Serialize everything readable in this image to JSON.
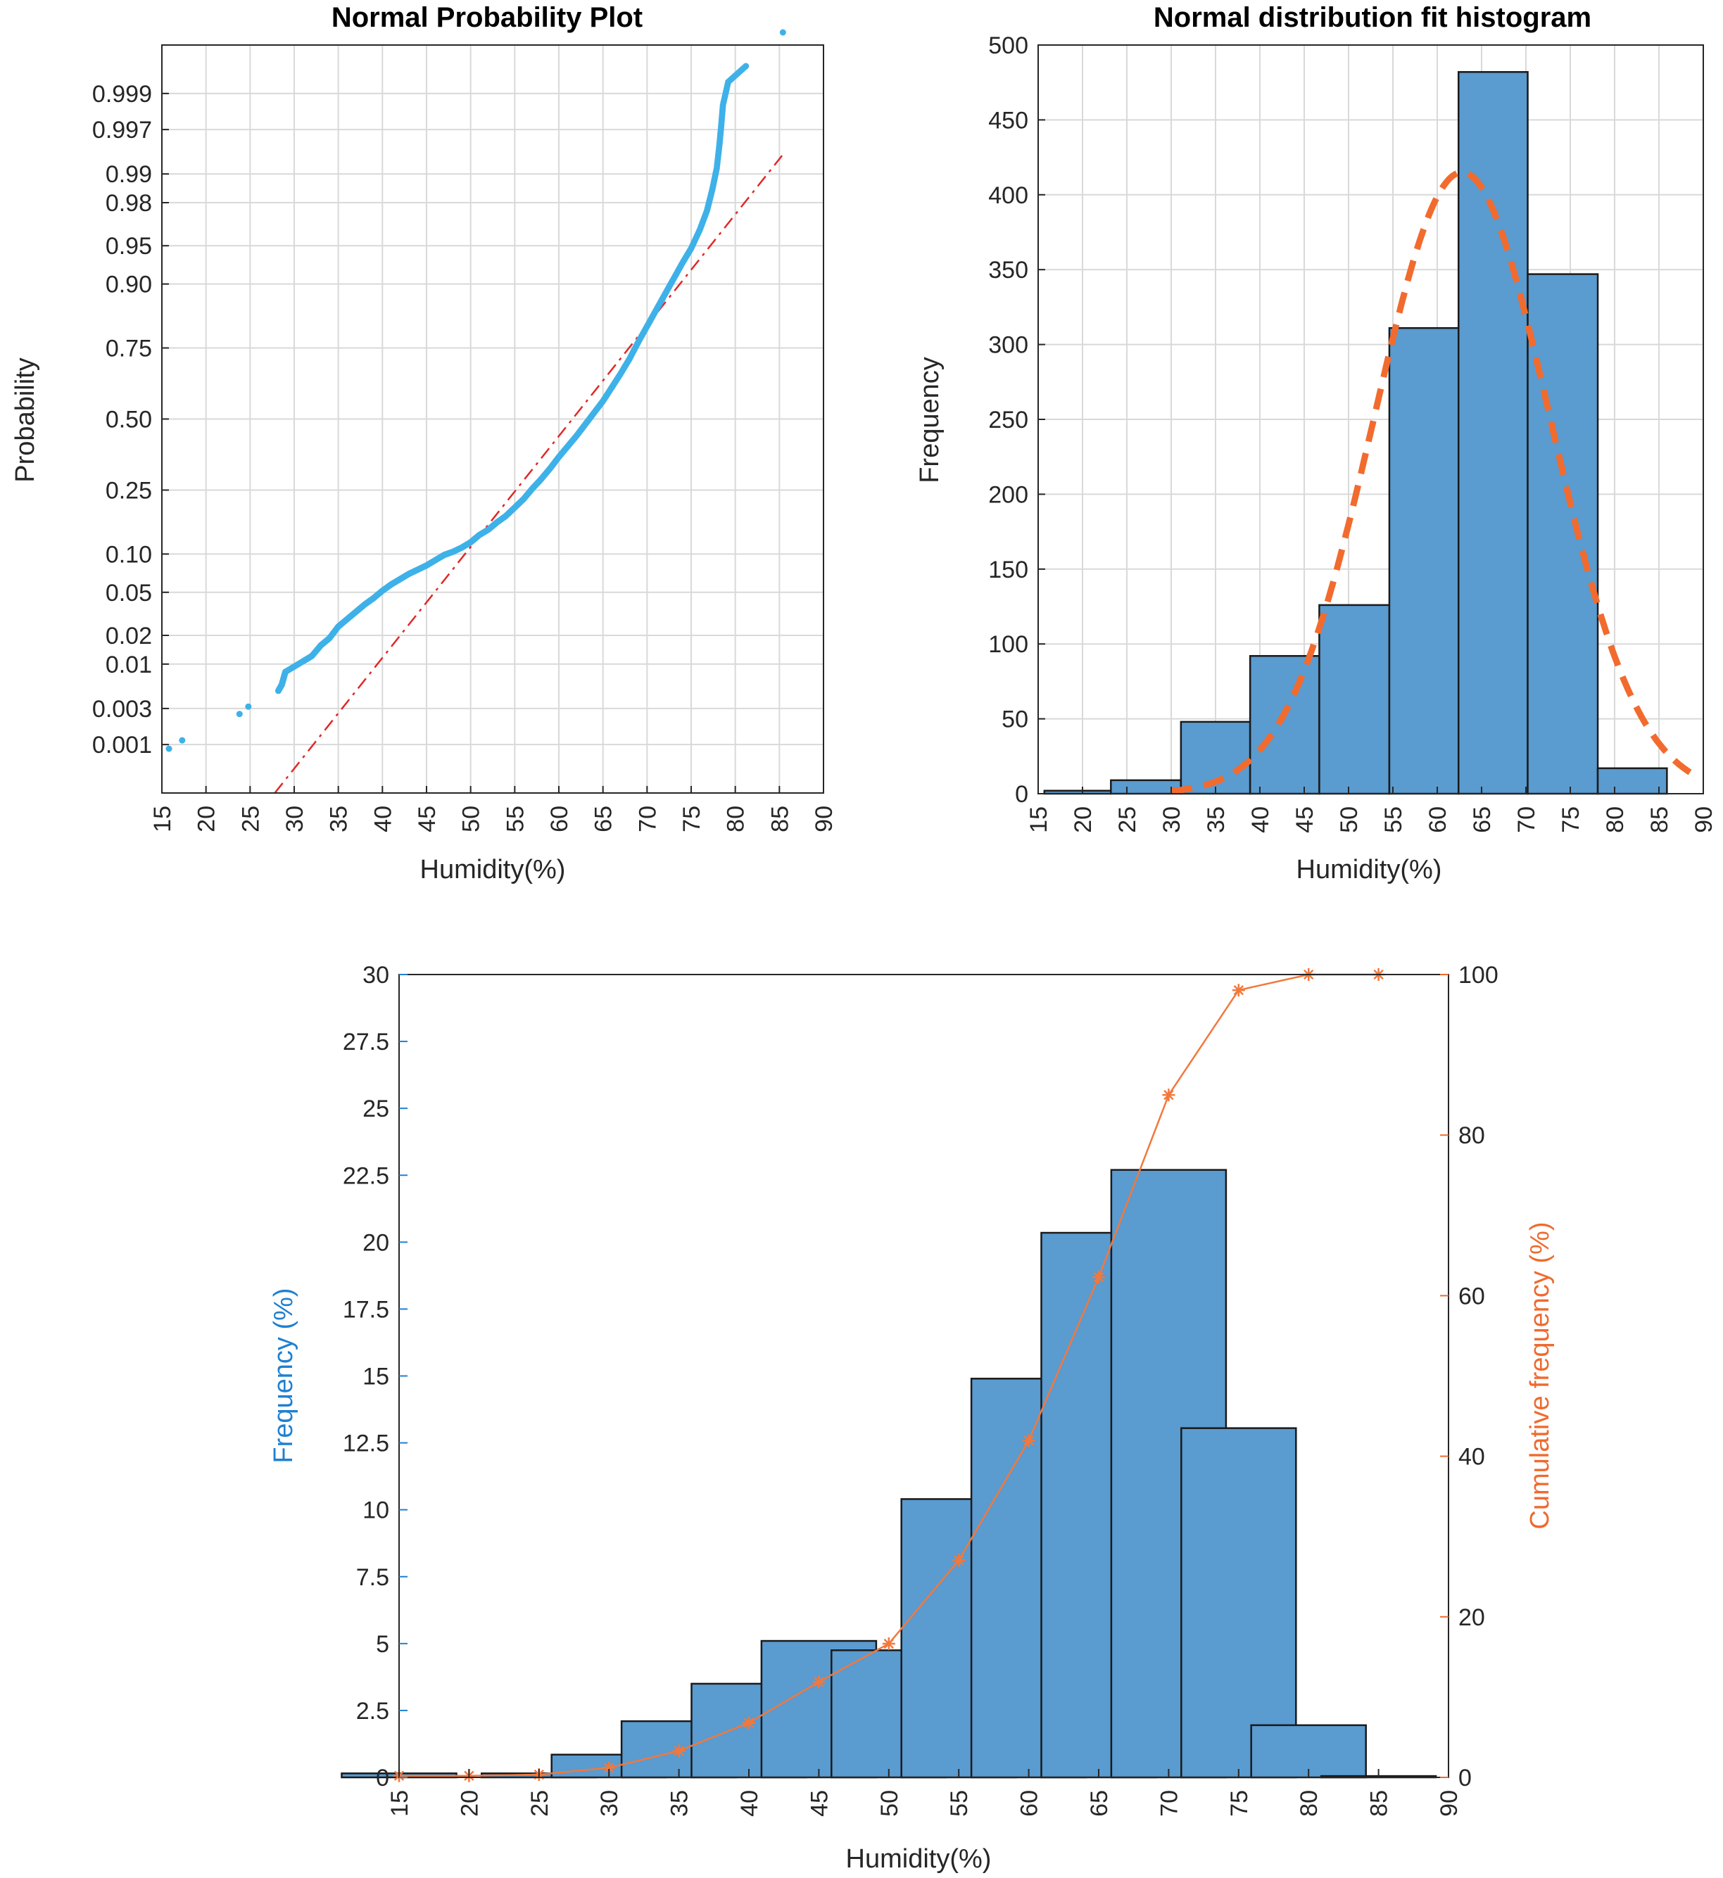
{
  "colors": {
    "bar": "#5a9bd0",
    "bar_edge": "#1a1a1a",
    "scatter": "#3eb1e8",
    "ref_line": "#e02828",
    "fit_curve": "#f26b2e",
    "cum_line": "#f2783c",
    "left_axis": "#1f80d0",
    "right_axis": "#ef6a2f",
    "grid": "#d9d9d9",
    "axis": "#262626"
  },
  "chart_data": [
    {
      "id": "probplot",
      "type": "scatter",
      "title": "Normal Probability Plot",
      "xlabel": "Humidity(%)",
      "ylabel": "Probability",
      "xlim": [
        15,
        90
      ],
      "xticks": [
        "15",
        "20",
        "25",
        "30",
        "35",
        "40",
        "45",
        "50",
        "55",
        "60",
        "65",
        "70",
        "75",
        "80",
        "85",
        "90"
      ],
      "yticks": [
        0.001,
        0.003,
        0.01,
        0.02,
        0.05,
        0.1,
        0.25,
        0.5,
        0.75,
        0.9,
        0.95,
        0.98,
        0.99,
        0.997,
        0.999
      ],
      "ytick_labels": [
        "0.001",
        "0.003",
        "0.01",
        "0.02",
        "0.05",
        "0.10",
        "0.25",
        "0.50",
        "0.75",
        "0.90",
        "0.95",
        "0.98",
        "0.99",
        "0.997",
        "0.999"
      ],
      "zlim": [
        -3.55,
        3.55
      ],
      "grid": true,
      "reference_line": {
        "x": [
          27.8,
          85.3
        ],
        "z": [
          -3.55,
          2.5
        ]
      },
      "points": [
        [
          15.8,
          -3.13
        ],
        [
          17.3,
          -3.05
        ],
        [
          23.8,
          -2.8
        ],
        [
          24.8,
          -2.73
        ],
        [
          28.2,
          -2.58
        ],
        [
          28.6,
          -2.52
        ],
        [
          28.8,
          -2.46
        ],
        [
          29.0,
          -2.4
        ],
        [
          31,
          -2.3
        ],
        [
          32,
          -2.25
        ],
        [
          33,
          -2.15
        ],
        [
          34,
          -2.08
        ],
        [
          35,
          -1.97
        ],
        [
          36,
          -1.9
        ],
        [
          37,
          -1.83
        ],
        [
          38,
          -1.76
        ],
        [
          39,
          -1.7
        ],
        [
          40,
          -1.63
        ],
        [
          41,
          -1.57
        ],
        [
          42,
          -1.52
        ],
        [
          43,
          -1.47
        ],
        [
          44,
          -1.43
        ],
        [
          45,
          -1.39
        ],
        [
          46,
          -1.34
        ],
        [
          47,
          -1.29
        ],
        [
          48,
          -1.26
        ],
        [
          49,
          -1.22
        ],
        [
          50,
          -1.17
        ],
        [
          51,
          -1.1
        ],
        [
          52,
          -1.05
        ],
        [
          53,
          -0.98
        ],
        [
          54,
          -0.92
        ],
        [
          55,
          -0.84
        ],
        [
          56,
          -0.76
        ],
        [
          57,
          -0.66
        ],
        [
          58,
          -0.57
        ],
        [
          59,
          -0.47
        ],
        [
          60,
          -0.36
        ],
        [
          61,
          -0.26
        ],
        [
          62,
          -0.16
        ],
        [
          63,
          -0.05
        ],
        [
          64,
          0.06
        ],
        [
          65,
          0.17
        ],
        [
          66,
          0.3
        ],
        [
          67,
          0.43
        ],
        [
          68,
          0.57
        ],
        [
          69,
          0.73
        ],
        [
          70,
          0.88
        ],
        [
          71,
          1.03
        ],
        [
          72,
          1.18
        ],
        [
          73,
          1.33
        ],
        [
          74,
          1.48
        ],
        [
          75,
          1.62
        ],
        [
          76,
          1.8
        ],
        [
          76.8,
          1.98
        ],
        [
          77.4,
          2.18
        ],
        [
          77.9,
          2.38
        ],
        [
          78.2,
          2.6
        ],
        [
          78.4,
          2.78
        ],
        [
          78.6,
          2.98
        ],
        [
          79.2,
          3.2
        ],
        [
          81.2,
          3.35
        ],
        [
          85.4,
          3.67
        ]
      ]
    },
    {
      "id": "fithist",
      "type": "bar",
      "title": "Normal distribution fit histogram",
      "xlabel": "Humidity(%)",
      "ylabel": "Frequency",
      "xlim": [
        15,
        90
      ],
      "ylim": [
        0,
        500
      ],
      "xticks": [
        "15",
        "20",
        "25",
        "30",
        "35",
        "40",
        "45",
        "50",
        "55",
        "60",
        "65",
        "70",
        "75",
        "80",
        "85",
        "90"
      ],
      "yticks": [
        "0",
        "50",
        "100",
        "150",
        "200",
        "250",
        "300",
        "350",
        "400",
        "450",
        "500"
      ],
      "grid": true,
      "bins": [
        [
          15.7,
          23.2,
          2
        ],
        [
          23.2,
          31.1,
          9
        ],
        [
          31.1,
          38.9,
          48
        ],
        [
          38.9,
          46.7,
          92
        ],
        [
          46.7,
          54.6,
          126
        ],
        [
          54.6,
          62.4,
          311
        ],
        [
          62.4,
          70.2,
          482
        ],
        [
          70.2,
          78.1,
          347
        ],
        [
          78.1,
          85.9,
          17
        ]
      ],
      "fit": {
        "type": "normal",
        "mean": 62.8,
        "sd": 9.9,
        "peak": 415,
        "x_range": [
          30,
          88.5
        ]
      }
    },
    {
      "id": "cumhist",
      "type": "bar",
      "title": "",
      "xlabel": "Humidity(%)",
      "ylabel": "Frequency (%)",
      "y2label": "Cumulative frequency (%)",
      "xlim": [
        15,
        90
      ],
      "ylim": [
        0,
        30
      ],
      "y2lim": [
        0,
        100
      ],
      "xticks": [
        "15",
        "20",
        "25",
        "30",
        "35",
        "40",
        "45",
        "50",
        "55",
        "60",
        "65",
        "70",
        "75",
        "80",
        "85",
        "90"
      ],
      "yticks": [
        "0",
        "2.5",
        "5",
        "7.5",
        "10",
        "12.5",
        "15",
        "17.5",
        "20",
        "22.5",
        "25",
        "27.5",
        "30"
      ],
      "y2ticks": [
        "0",
        "20",
        "40",
        "60",
        "80",
        "100"
      ],
      "grid": false,
      "categories": [
        15,
        20,
        25,
        30,
        35,
        40,
        45,
        50,
        55,
        60,
        65,
        70,
        75,
        80,
        85
      ],
      "values": [
        0.15,
        0.0,
        0.15,
        0.85,
        2.1,
        3.5,
        5.1,
        4.75,
        10.4,
        14.9,
        20.35,
        22.7,
        13.05,
        1.95,
        0.05
      ],
      "cumulative": [
        0.2,
        0.2,
        0.35,
        1.2,
        3.3,
        6.8,
        11.9,
        16.65,
        27.05,
        41.95,
        62.3,
        85.0,
        98.05,
        100.0,
        100.0
      ]
    }
  ]
}
